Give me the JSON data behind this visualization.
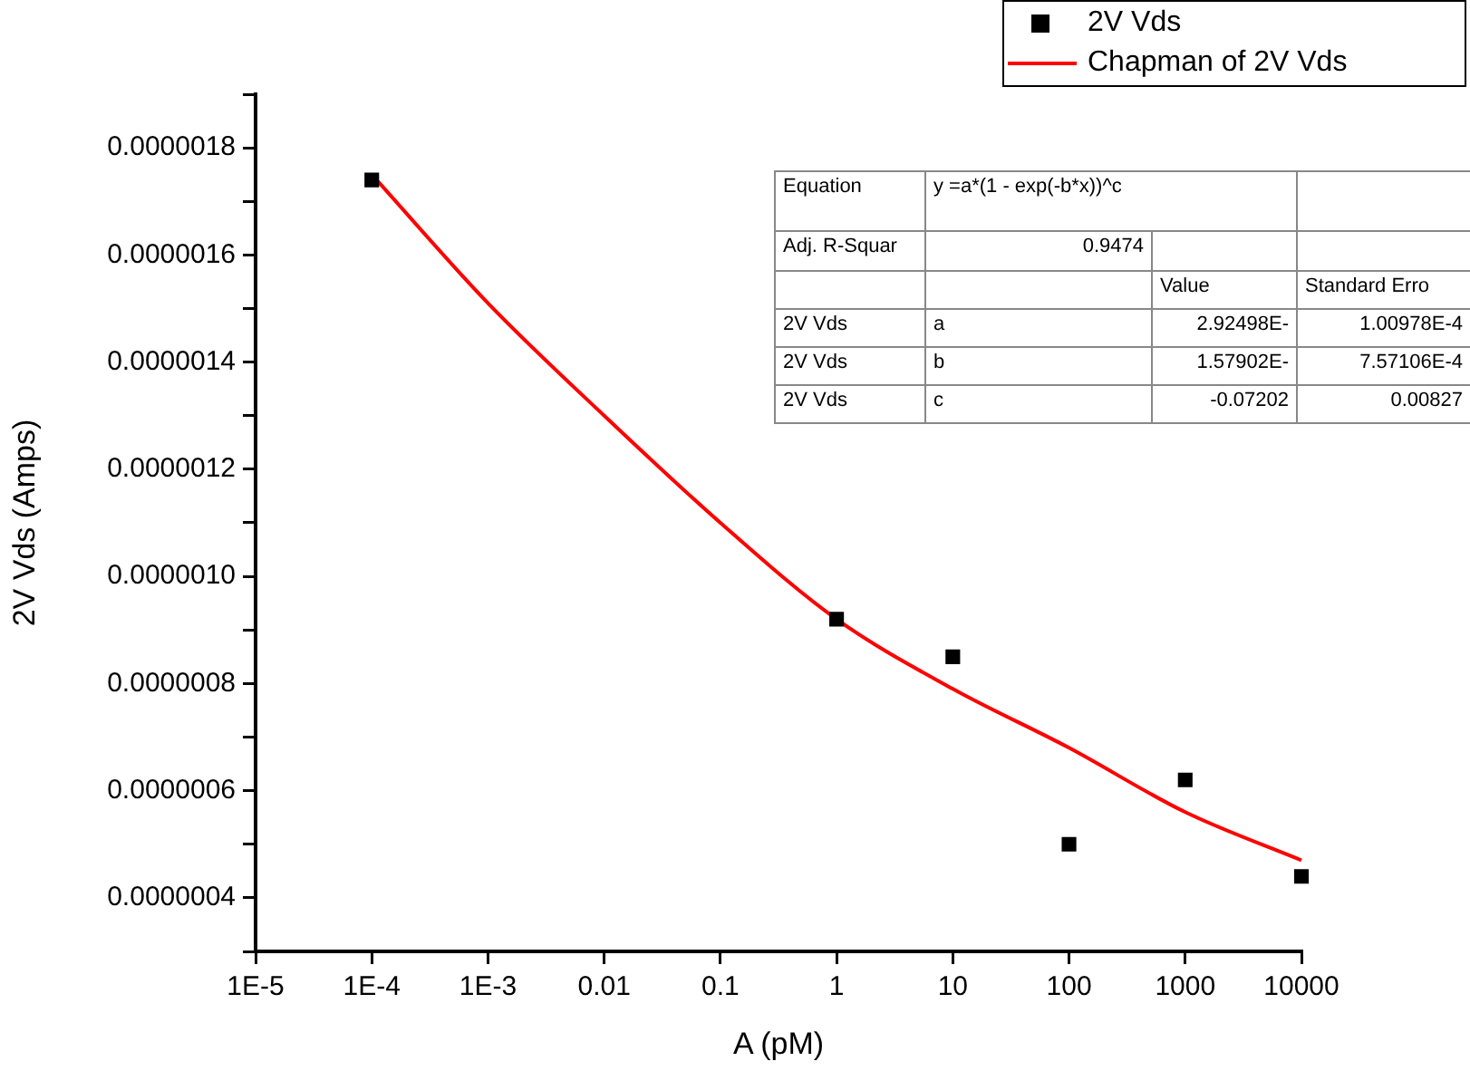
{
  "chart_data": {
    "type": "scatter",
    "xlabel": "A (pM)",
    "ylabel": "2V Vds (Amps)",
    "log": "x",
    "grid": false,
    "legend": "top right",
    "xlim": [
      1e-05,
      10000
    ],
    "xticks": [
      {
        "value": 1e-05,
        "label": "1E-5"
      },
      {
        "value": 0.0001,
        "label": "1E-4"
      },
      {
        "value": 0.001,
        "label": "1E-3"
      },
      {
        "value": 0.01,
        "label": "0.01"
      },
      {
        "value": 0.1,
        "label": "0.1"
      },
      {
        "value": 1,
        "label": "1"
      },
      {
        "value": 10,
        "label": "10"
      },
      {
        "value": 100,
        "label": "100"
      },
      {
        "value": 1000,
        "label": "1000"
      },
      {
        "value": 10000,
        "label": "10000"
      }
    ],
    "ylim": [
      3e-07,
      1.9e-06
    ],
    "yticks": [
      {
        "value": 3e-07,
        "label": null
      },
      {
        "value": 4e-07,
        "label": "0.0000004"
      },
      {
        "value": 5e-07,
        "label": null
      },
      {
        "value": 6e-07,
        "label": "0.0000006"
      },
      {
        "value": 7e-07,
        "label": null
      },
      {
        "value": 8e-07,
        "label": "0.0000008"
      },
      {
        "value": 9e-07,
        "label": null
      },
      {
        "value": 1e-06,
        "label": "0.0000010"
      },
      {
        "value": 1.1e-06,
        "label": null
      },
      {
        "value": 1.2e-06,
        "label": "0.0000012"
      },
      {
        "value": 1.3e-06,
        "label": null
      },
      {
        "value": 1.4e-06,
        "label": "0.0000014"
      },
      {
        "value": 1.5e-06,
        "label": null
      },
      {
        "value": 1.6e-06,
        "label": "0.0000016"
      },
      {
        "value": 1.7e-06,
        "label": null
      },
      {
        "value": 1.8e-06,
        "label": "0.0000018"
      },
      {
        "value": 1.9e-06,
        "label": null
      }
    ],
    "series": [
      {
        "name": "2V Vds",
        "type": "scatter",
        "marker": "square",
        "color": "#000000",
        "x": [
          0.0001,
          1,
          10,
          100,
          1000,
          10000
        ],
        "values": [
          1.74e-06,
          9.2e-07,
          8.5e-07,
          5e-07,
          6.2e-07,
          4.4e-07
        ]
      },
      {
        "name": "Chapman of 2V Vds",
        "type": "line",
        "marker": "none",
        "line_style": "solid",
        "color": "#ff0000",
        "x": [
          0.0001,
          0.001,
          0.01,
          0.1,
          1,
          10,
          100,
          1000,
          10000
        ],
        "values": [
          1.75e-06,
          1.51e-06,
          1.3e-06,
          1.1e-06,
          9.2e-07,
          7.9e-07,
          6.8e-07,
          5.6e-07,
          4.7e-07
        ]
      }
    ],
    "annotations": [
      "Equation",
      "y =a*(1 - exp(-b*x))^c",
      "Adj. R-Squar",
      "0.9474",
      "Value",
      "Standard Erro",
      "2V Vds",
      "a",
      "2.92498E-",
      "1.00978E-4",
      "2V Vds",
      "b",
      "1.57902E-",
      "7.57106E-4",
      "2V Vds",
      "c",
      "-0.07202",
      "0.00827"
    ]
  }
}
